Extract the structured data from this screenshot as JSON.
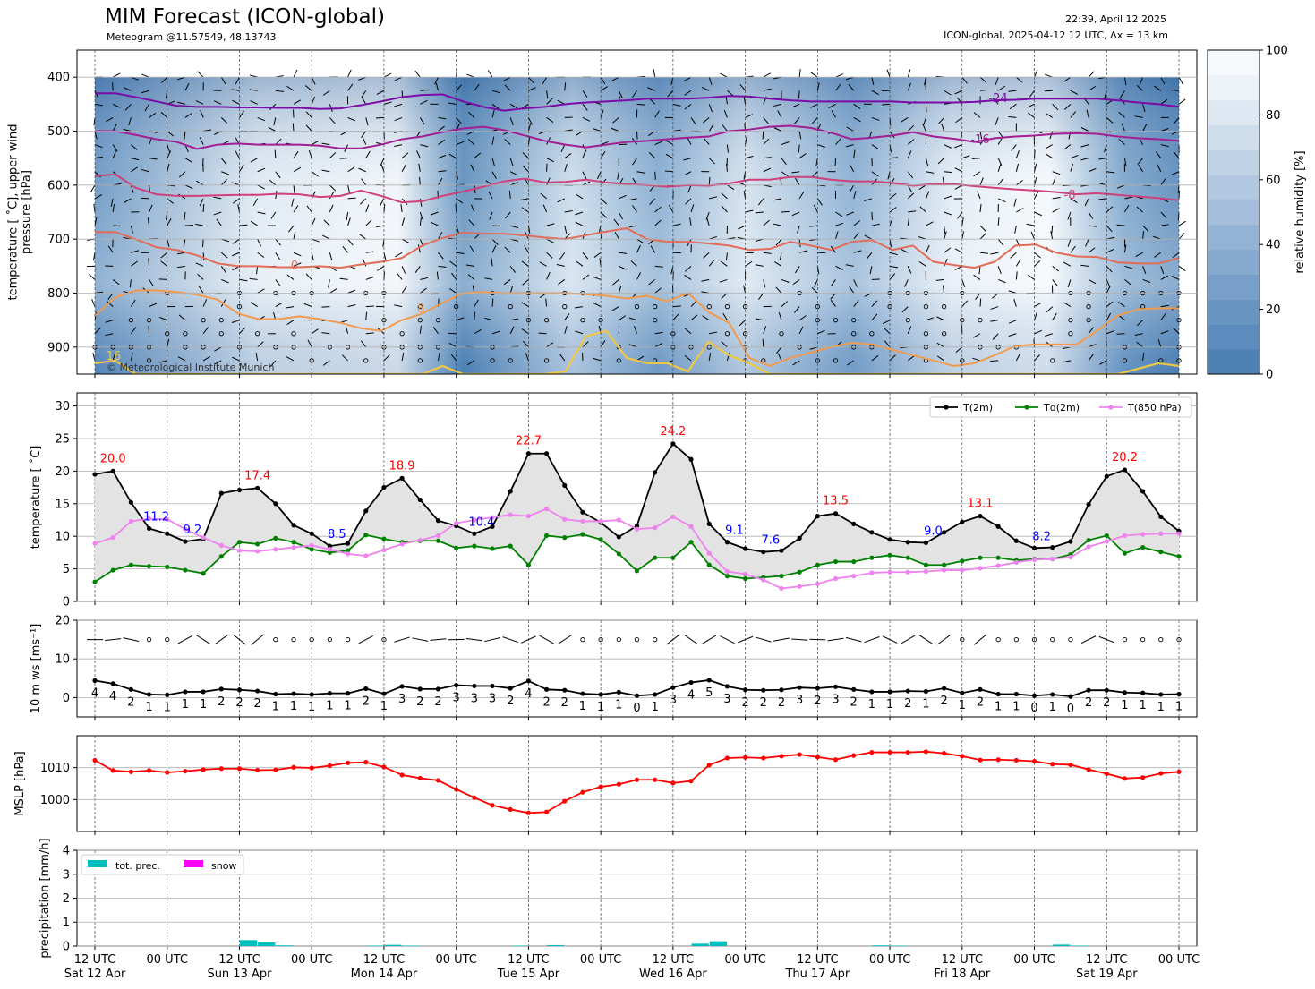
{
  "header": {
    "title": "MIM Forecast (ICON-global)",
    "subtitle": "Meteogram @11.57549, 48.13743",
    "issued": "22:39, April 12 2025",
    "model_info": "ICON-global, 2025-04-12 12 UTC, Δx = 13 km"
  },
  "time_axis": {
    "tick_labels": [
      "12 UTC\nSat 12 Apr",
      "00 UTC",
      "12 UTC\nSun 13 Apr",
      "00 UTC",
      "12 UTC\nMon 14 Apr",
      "00 UTC",
      "12 UTC\nTue 15 Apr",
      "00 UTC",
      "12 UTC\nWed 16 Apr",
      "00 UTC",
      "12 UTC\nThu 17 Apr",
      "00 UTC",
      "12 UTC\nFri 18 Apr",
      "00 UTC",
      "12 UTC\nSat 19 Apr",
      "00 UTC"
    ],
    "start": "2025-04-12 12 UTC",
    "step_hours": 3
  },
  "chart_data": [
    {
      "type": "heatmap",
      "panel": "upper-air",
      "ylabel": "temperature [$^\\circ$C], upper wind\npressure [hPa]",
      "yticks": [
        400,
        500,
        600,
        700,
        800,
        900
      ],
      "ylim": [
        950,
        350
      ],
      "inverted_y": true,
      "colorbar": {
        "label": "relative humidity [%]",
        "ticks": [
          0,
          20,
          40,
          60,
          80,
          100
        ]
      },
      "isotherms": [
        {
          "level": -24,
          "label": "-24",
          "color": "#7b0aa8",
          "p": [
            430,
            430,
            437,
            445,
            453,
            455,
            455,
            456,
            456,
            457,
            457,
            459,
            458,
            452,
            445,
            437,
            433,
            432,
            445,
            455,
            462,
            458,
            455,
            450,
            447,
            445,
            443,
            440,
            440,
            440,
            438,
            435,
            436,
            440,
            443,
            445,
            445,
            445,
            445,
            445,
            447,
            447,
            447,
            446,
            443,
            442,
            440,
            440,
            440,
            440,
            443,
            447,
            450,
            455
          ]
        },
        {
          "level": -16,
          "label": "-16",
          "color": "#a31d94",
          "p": [
            500,
            500,
            507,
            515,
            520,
            533,
            525,
            523,
            525,
            525,
            525,
            527,
            532,
            532,
            525,
            515,
            510,
            502,
            495,
            492,
            498,
            508,
            518,
            525,
            530,
            525,
            520,
            518,
            515,
            512,
            510,
            500,
            497,
            492,
            490,
            494,
            503,
            515,
            512,
            508,
            502,
            510,
            514,
            520,
            513,
            510,
            508,
            505,
            504,
            505,
            510,
            513,
            515,
            518
          ]
        },
        {
          "level": -8,
          "label": "-8",
          "color": "#d0407a",
          "p": [
            583,
            580,
            605,
            617,
            620,
            620,
            619,
            618,
            618,
            616,
            617,
            622,
            620,
            610,
            620,
            632,
            630,
            620,
            612,
            603,
            593,
            588,
            595,
            594,
            590,
            595,
            598,
            600,
            603,
            600,
            601,
            597,
            590,
            590,
            585,
            585,
            590,
            593,
            593,
            596,
            601,
            598,
            598,
            602,
            605,
            608,
            610,
            613,
            617,
            615,
            618,
            621,
            624,
            628
          ]
        },
        {
          "level": 0,
          "label": "0",
          "color": "#e36c58",
          "p": [
            687,
            687,
            700,
            715,
            720,
            730,
            745,
            750,
            750,
            752,
            752,
            750,
            753,
            747,
            742,
            735,
            712,
            698,
            688,
            690,
            690,
            693,
            697,
            700,
            693,
            686,
            680,
            700,
            705,
            705,
            708,
            712,
            720,
            718,
            705,
            712,
            720,
            705,
            702,
            720,
            712,
            742,
            748,
            753,
            742,
            712,
            710,
            725,
            732,
            733,
            743,
            745,
            745,
            735
          ]
        },
        {
          "level": 8,
          "label": "8",
          "color": "#f19a4e",
          "p": [
            842,
            808,
            795,
            795,
            798,
            803,
            812,
            838,
            848,
            848,
            843,
            848,
            855,
            865,
            870,
            850,
            838,
            818,
            800,
            798,
            800,
            800,
            800,
            800,
            802,
            805,
            810,
            805,
            815,
            800,
            835,
            855,
            920,
            935,
            920,
            910,
            900,
            892,
            895,
            905,
            915,
            925,
            935,
            930,
            915,
            898,
            895,
            895,
            895,
            870,
            842,
            830,
            828,
            828
          ]
        },
        {
          "level": 16,
          "label": "16",
          "color": "#f0c845",
          "p": [
            930,
            925,
            950,
            950,
            950,
            950,
            950,
            950,
            950,
            950,
            950,
            950,
            950,
            950,
            950,
            950,
            950,
            935,
            950,
            950,
            950,
            950,
            950,
            945,
            880,
            870,
            920,
            930,
            930,
            945,
            890,
            915,
            930,
            950,
            950,
            950,
            950,
            950,
            950,
            950,
            950,
            950,
            950,
            950,
            950,
            950,
            950,
            950,
            950,
            950,
            950,
            940,
            930,
            935
          ]
        }
      ]
    },
    {
      "type": "line",
      "panel": "temperature",
      "ylabel": "temperature [$^\\circ$C]",
      "ylim": [
        0,
        32
      ],
      "yticks": [
        0,
        5,
        10,
        15,
        20,
        25,
        30
      ],
      "series": [
        {
          "name": "T(2m)",
          "color": "#000000",
          "values": [
            19.5,
            20.0,
            15.2,
            11.2,
            10.4,
            9.2,
            9.6,
            16.6,
            17.1,
            17.4,
            15.0,
            11.7,
            10.4,
            8.5,
            8.9,
            13.9,
            17.5,
            18.9,
            15.6,
            12.4,
            11.6,
            10.4,
            11.5,
            16.9,
            22.7,
            22.7,
            17.8,
            13.7,
            12.1,
            9.9,
            11.6,
            19.8,
            24.2,
            21.8,
            11.9,
            9.1,
            8.1,
            7.6,
            7.8,
            9.7,
            13.1,
            13.5,
            11.9,
            10.6,
            9.5,
            9.1,
            9.0,
            10.6,
            12.2,
            13.1,
            11.5,
            9.3,
            8.2,
            8.3,
            9.2,
            14.9,
            19.2,
            20.2,
            16.9,
            13.0,
            10.8
          ]
        },
        {
          "name": "Td(2m)",
          "color": "#008000",
          "values": [
            3.0,
            4.8,
            5.6,
            5.4,
            5.3,
            4.8,
            4.3,
            6.9,
            9.1,
            8.8,
            9.7,
            9.1,
            8.0,
            7.5,
            7.8,
            10.2,
            9.6,
            9.1,
            9.3,
            9.3,
            8.2,
            8.5,
            8.1,
            8.5,
            5.6,
            10.1,
            9.8,
            10.3,
            9.5,
            7.3,
            4.7,
            6.7,
            6.7,
            9.1,
            5.6,
            3.9,
            3.5,
            3.7,
            3.9,
            4.5,
            5.6,
            6.1,
            6.1,
            6.7,
            7.1,
            6.7,
            5.6,
            5.6,
            6.2,
            6.7,
            6.7,
            6.3,
            6.5,
            6.5,
            7.2,
            9.4,
            10.1,
            7.4,
            8.3,
            7.6,
            6.9
          ]
        },
        {
          "name": "T(850 hPa)",
          "color": "#ee82ee",
          "values": [
            8.9,
            9.8,
            12.3,
            12.7,
            12.6,
            11.1,
            9.8,
            8.6,
            7.8,
            7.7,
            8.0,
            8.3,
            8.6,
            8.0,
            7.3,
            7.0,
            7.9,
            8.8,
            9.4,
            10.1,
            12.0,
            12.5,
            12.9,
            13.3,
            13.1,
            14.2,
            12.6,
            12.3,
            12.3,
            12.5,
            11.1,
            11.3,
            13.0,
            11.5,
            7.4,
            4.6,
            4.2,
            3.3,
            2.0,
            2.3,
            2.7,
            3.5,
            3.9,
            4.4,
            4.5,
            4.5,
            4.6,
            4.8,
            4.8,
            5.1,
            5.5,
            6.0,
            6.4,
            6.5,
            6.8,
            8.4,
            9.2,
            10.1,
            10.3,
            10.4,
            10.4
          ]
        }
      ],
      "annotations": [
        {
          "text": "20.0",
          "x_index": 1,
          "color": "#ff0000",
          "kind": "max"
        },
        {
          "text": "11.2",
          "x_index": 3,
          "color": "#0000ff",
          "kind": "min"
        },
        {
          "text": "9.2",
          "x_index": 5,
          "color": "#0000ff",
          "kind": "min"
        },
        {
          "text": "17.4",
          "x_index": 9,
          "color": "#ff0000",
          "kind": "max"
        },
        {
          "text": "8.5",
          "x_index": 13,
          "color": "#0000ff",
          "kind": "min"
        },
        {
          "text": "18.9",
          "x_index": 17,
          "color": "#ff0000",
          "kind": "max"
        },
        {
          "text": "10.4",
          "x_index": 21,
          "color": "#0000ff",
          "kind": "min"
        },
        {
          "text": "22.7",
          "x_index": 24,
          "color": "#ff0000",
          "kind": "max"
        },
        {
          "text": "24.2",
          "x_index": 32,
          "color": "#ff0000",
          "kind": "max"
        },
        {
          "text": "9.1",
          "x_index": 35,
          "color": "#0000ff",
          "kind": "min"
        },
        {
          "text": "7.6",
          "x_index": 37,
          "color": "#0000ff",
          "kind": "min"
        },
        {
          "text": "13.5",
          "x_index": 41,
          "color": "#ff0000",
          "kind": "max"
        },
        {
          "text": "9.0",
          "x_index": 46,
          "color": "#0000ff",
          "kind": "min"
        },
        {
          "text": "13.1",
          "x_index": 49,
          "color": "#ff0000",
          "kind": "max"
        },
        {
          "text": "8.2",
          "x_index": 52,
          "color": "#0000ff",
          "kind": "min"
        },
        {
          "text": "20.2",
          "x_index": 57,
          "color": "#ff0000",
          "kind": "max"
        }
      ],
      "legend": "top-right",
      "grid": true
    },
    {
      "type": "line",
      "panel": "wind",
      "ylabel": "10 m ws [ms$^{-1}$]",
      "ylim": [
        -5,
        20
      ],
      "yticks": [
        0,
        10,
        20
      ],
      "series": [
        {
          "name": "10 m wind speed",
          "color": "#000000",
          "values": [
            4.4,
            3.6,
            2.1,
            0.8,
            0.7,
            1.5,
            1.5,
            2.2,
            2.0,
            1.7,
            0.9,
            1.0,
            0.8,
            1.1,
            1.1,
            2.3,
            1.0,
            2.9,
            2.2,
            2.2,
            3.2,
            3.0,
            3.0,
            2.4,
            4.3,
            2.1,
            1.9,
            1.0,
            0.8,
            1.4,
            0.5,
            0.8,
            2.6,
            3.9,
            4.5,
            2.9,
            2.0,
            1.9,
            2.0,
            2.6,
            2.4,
            2.8,
            2.1,
            1.5,
            1.5,
            1.7,
            1.6,
            2.4,
            1.2,
            2.1,
            0.9,
            0.9,
            0.5,
            0.8,
            0.3,
            1.9,
            1.9,
            1.3,
            1.2,
            0.8,
            0.9
          ]
        }
      ],
      "value_labels": [
        "4",
        "4",
        "2",
        "1",
        "1",
        "1",
        "1",
        "2",
        "2",
        "2",
        "1",
        "1",
        "1",
        "1",
        "1",
        "2",
        "1",
        "3",
        "2",
        "2",
        "3",
        "3",
        "3",
        "2",
        "4",
        "2",
        "2",
        "1",
        "1",
        "1",
        "0",
        "1",
        "3",
        "4",
        "5",
        "3",
        "2",
        "2",
        "2",
        "3",
        "2",
        "3",
        "2",
        "1",
        "1",
        "2",
        "1",
        "2",
        "1",
        "2",
        "1",
        "1",
        "0",
        "1",
        "0",
        "2",
        "2",
        "1",
        "1",
        "1",
        "1"
      ],
      "grid": true
    },
    {
      "type": "line",
      "panel": "pressure",
      "ylabel": "MSLP [hPa]",
      "ylim": [
        990,
        1020
      ],
      "yticks": [
        1000,
        1010
      ],
      "series": [
        {
          "name": "MSLP",
          "color": "#ff0000",
          "values": [
            1012.3,
            1009.1,
            1008.7,
            1009.1,
            1008.5,
            1008.9,
            1009.4,
            1009.7,
            1009.7,
            1009.2,
            1009.3,
            1010.1,
            1009.9,
            1010.6,
            1011.5,
            1011.7,
            1010.2,
            1007.7,
            1006.7,
            1006.0,
            1003.2,
            1000.6,
            998.2,
            996.9,
            995.8,
            996.1,
            999.5,
            1002.3,
            1004.0,
            1004.8,
            1006.2,
            1006.2,
            1005.2,
            1005.8,
            1010.8,
            1013.0,
            1013.2,
            1013.0,
            1013.6,
            1014.1,
            1013.3,
            1012.5,
            1013.8,
            1014.8,
            1014.8,
            1014.8,
            1015.0,
            1014.5,
            1013.6,
            1012.4,
            1012.5,
            1012.3,
            1012.0,
            1011.1,
            1010.9,
            1009.4,
            1008.1,
            1006.6,
            1006.9,
            1008.2,
            1008.7
          ]
        }
      ],
      "grid": true
    },
    {
      "type": "bar",
      "panel": "precipitation",
      "ylabel": "precipitation [mm/h]",
      "ylim": [
        0,
        4
      ],
      "yticks": [
        0,
        1,
        2,
        3,
        4
      ],
      "series": [
        {
          "name": "tot. prec.",
          "color": "#00bfbf",
          "values": [
            0,
            0,
            0,
            0,
            0,
            0,
            0,
            0,
            0.25,
            0.15,
            0.03,
            0,
            0,
            0,
            0,
            0.02,
            0.05,
            0.02,
            0,
            0,
            0,
            0,
            0,
            0.02,
            0,
            0.04,
            0,
            0,
            0,
            0,
            0,
            0,
            0,
            0.1,
            0.2,
            0,
            0,
            0,
            0,
            0,
            0,
            0,
            0,
            0.03,
            0.02,
            0,
            0,
            0,
            0,
            0,
            0,
            0,
            0,
            0.06,
            0.02,
            0,
            0,
            0,
            0,
            0,
            0
          ]
        },
        {
          "name": "snow",
          "color": "#ff00ff",
          "values": [
            0,
            0,
            0,
            0,
            0,
            0,
            0,
            0,
            0,
            0,
            0,
            0,
            0,
            0,
            0,
            0,
            0,
            0,
            0,
            0,
            0,
            0,
            0,
            0,
            0,
            0,
            0,
            0,
            0,
            0,
            0,
            0,
            0,
            0,
            0,
            0,
            0,
            0,
            0,
            0,
            0,
            0,
            0,
            0,
            0,
            0,
            0,
            0,
            0,
            0,
            0,
            0,
            0,
            0,
            0,
            0,
            0,
            0,
            0,
            0,
            0
          ]
        }
      ],
      "legend": "top-left",
      "grid": true
    }
  ],
  "copyright": "© Meteorological Institute Munich"
}
